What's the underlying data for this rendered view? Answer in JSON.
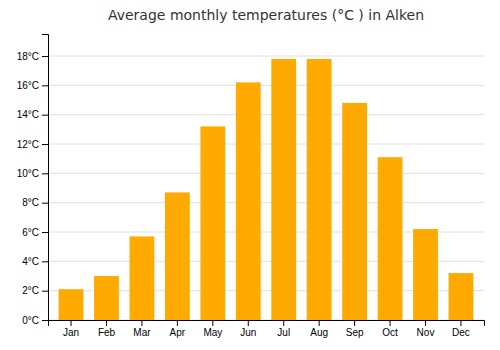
{
  "chart_data": {
    "type": "bar",
    "title": "Average monthly temperatures (°C ) in Alken",
    "categories": [
      "Jan",
      "Feb",
      "Mar",
      "Apr",
      "May",
      "Jun",
      "Jul",
      "Aug",
      "Sep",
      "Oct",
      "Nov",
      "Dec"
    ],
    "values": [
      2.1,
      3.0,
      5.7,
      8.7,
      13.2,
      16.2,
      17.8,
      17.8,
      14.8,
      11.1,
      6.2,
      3.2
    ],
    "color": "#FFAA00",
    "ylim": [
      0,
      19.5
    ],
    "yticks": [
      {
        "value": 0,
        "label": "0°C"
      },
      {
        "value": 2,
        "label": "2°C"
      },
      {
        "value": 4,
        "label": "4°C"
      },
      {
        "value": 6,
        "label": "6°C"
      },
      {
        "value": 8,
        "label": "8°C"
      },
      {
        "value": 10,
        "label": "10°C"
      },
      {
        "value": 12,
        "label": "12°C"
      },
      {
        "value": 14,
        "label": "14°C"
      },
      {
        "value": 16,
        "label": "16°C"
      },
      {
        "value": 18,
        "label": "18°C"
      }
    ],
    "grid": true
  }
}
